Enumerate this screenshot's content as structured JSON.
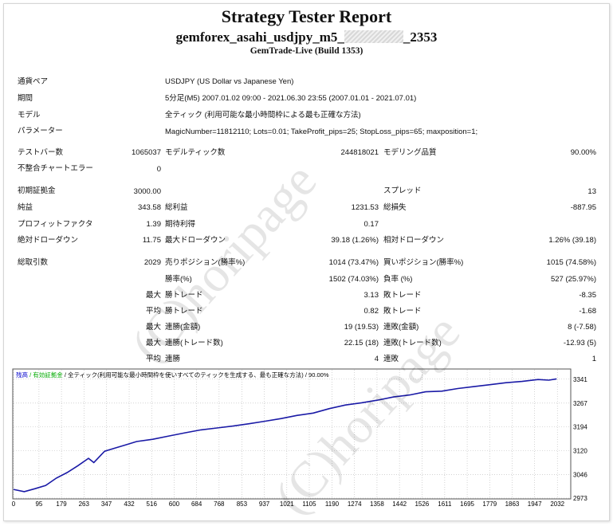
{
  "report": {
    "title": "Strategy Tester Report",
    "name_prefix": "gemforex_asahi_usdjpy_m5_",
    "name_suffix": "_2353",
    "build": "GemTrade-Live (Build 1353)"
  },
  "info": [
    {
      "label": "通貨ペア",
      "value": "USDJPY (US Dollar vs Japanese Yen)"
    },
    {
      "label": "期間",
      "value": "5分足(M5) 2007.01.02 09:00 - 2021.06.30 23:55 (2007.01.01 - 2021.07.01)"
    },
    {
      "label": "モデル",
      "value": "全ティック (利用可能な最小時間枠による最も正確な方法)"
    },
    {
      "label": "パラメーター",
      "value": "MagicNumber=11812110; Lots=0.01; TakeProfit_pips=25; StopLoss_pips=65; maxposition=1;"
    }
  ],
  "stats": {
    "bars_label": "テストバー数",
    "bars": "1065037",
    "ticks_label": "モデルティック数",
    "ticks": "244818021",
    "quality_label": "モデリング品質",
    "quality": "90.00%",
    "mismatch_label": "不整合チャートエラー",
    "mismatch": "0",
    "deposit_label": "初期証拠金",
    "deposit": "3000.00",
    "spread_label": "スプレッド",
    "spread": "13",
    "net_label": "純益",
    "net": "343.58",
    "gross_profit_label": "総利益",
    "gross_profit": "1231.53",
    "gross_loss_label": "総損失",
    "gross_loss": "-887.95",
    "pf_label": "プロフィットファクタ",
    "pf": "1.39",
    "expected_label": "期待利得",
    "expected": "0.17",
    "abs_dd_label": "絶対ドローダウン",
    "abs_dd": "11.75",
    "max_dd_label": "最大ドローダウン",
    "max_dd": "39.18 (1.26%)",
    "rel_dd_label": "相対ドローダウン",
    "rel_dd": "1.26% (39.18)",
    "total_trades_label": "総取引数",
    "total_trades": "2029",
    "short_label": "売りポジション(勝率%)",
    "short": "1014 (73.47%)",
    "long_label": "買いポジション(勝率%)",
    "long": "1015 (74.58%)",
    "win_label": "勝率(%)",
    "win": "1502 (74.03%)",
    "loss_label": "負率 (%)",
    "loss": "527 (25.97%)",
    "largest_label": "最大",
    "largest_win_label": "勝トレード",
    "largest_win": "3.13",
    "largest_loss_label": "敗トレード",
    "largest_loss": "-8.35",
    "average_label": "平均",
    "avg_win_label": "勝トレード",
    "avg_win": "0.82",
    "avg_loss_label": "敗トレード",
    "avg_loss": "-1.68",
    "max1_label": "最大",
    "max_consec_win_money_label": "連勝(金額)",
    "max_consec_win_money": "19 (19.53)",
    "max_consec_loss_money_label": "連敗(金額)",
    "max_consec_loss_money": "8 (-7.58)",
    "max2_label": "最大",
    "max_consec_profit_label": "連勝(トレード数)",
    "max_consec_profit": "22.15 (18)",
    "max_consec_loss_label": "連敗(トレード数)",
    "max_consec_loss": "-12.93 (5)",
    "avg2_label": "平均",
    "avg_consec_win_label": "連勝",
    "avg_consec_win": "4",
    "avg_consec_loss_label": "連敗",
    "avg_consec_loss": "1"
  },
  "watermark": [
    "(C)horipage",
    "(C)horipage"
  ],
  "chart_data": {
    "type": "line",
    "header": [
      {
        "text": "残高",
        "color": "#0000cc"
      },
      {
        "text": "有効証拠金",
        "color": "#00aa00"
      },
      {
        "text": "全ティック(利用可能な最小時間枠を使いすべてのティックを生成する、最も正確な方法)",
        "color": "#000000"
      },
      {
        "text": "90.00%",
        "color": "#000000"
      }
    ],
    "x_ticks": [
      "0",
      "95",
      "179",
      "263",
      "347",
      "432",
      "516",
      "600",
      "684",
      "768",
      "853",
      "937",
      "1021",
      "1105",
      "1190",
      "1274",
      "1358",
      "1442",
      "1526",
      "1611",
      "1695",
      "1779",
      "1863",
      "1947",
      "2032"
    ],
    "y_ticks": [
      "3341",
      "3267",
      "3194",
      "3120",
      "3046",
      "2973"
    ],
    "xlim": [
      0,
      2079
    ],
    "ylim": [
      2973,
      3370
    ],
    "line_color": "#1a1aa6",
    "x": [
      0,
      40,
      80,
      120,
      160,
      200,
      240,
      280,
      300,
      340,
      380,
      420,
      460,
      520,
      580,
      640,
      700,
      760,
      820,
      880,
      940,
      1000,
      1060,
      1120,
      1180,
      1240,
      1300,
      1360,
      1420,
      1480,
      1540,
      1600,
      1660,
      1720,
      1780,
      1840,
      1900,
      1960,
      2000,
      2029
    ],
    "y": [
      3000,
      2993,
      3002,
      3012,
      3035,
      3052,
      3073,
      3096,
      3083,
      3118,
      3128,
      3138,
      3148,
      3155,
      3165,
      3175,
      3184,
      3190,
      3196,
      3203,
      3211,
      3219,
      3229,
      3236,
      3250,
      3261,
      3268,
      3276,
      3286,
      3292,
      3302,
      3304,
      3312,
      3318,
      3324,
      3330,
      3334,
      3340,
      3338,
      3342
    ]
  }
}
